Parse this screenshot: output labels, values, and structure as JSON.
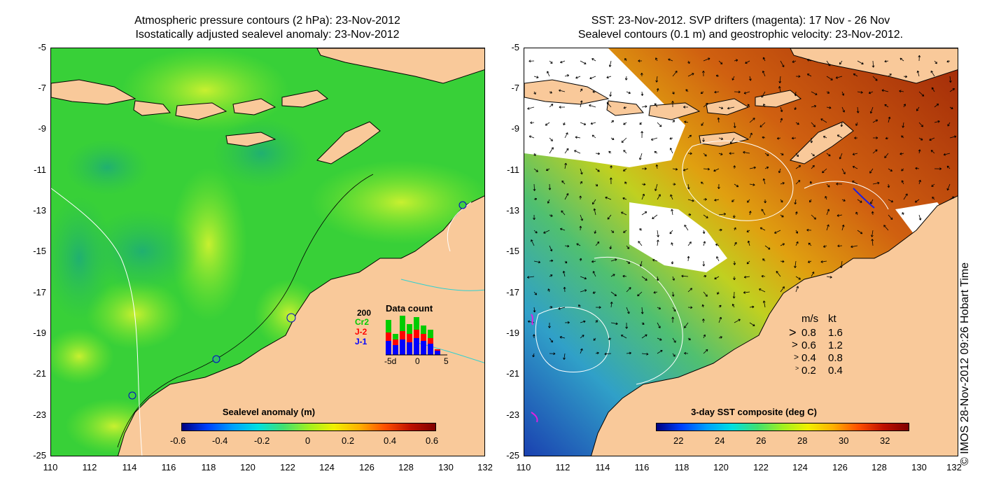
{
  "left_panel": {
    "title_line1": "Atmospheric pressure contours (2 hPa): 23-Nov-2012",
    "title_line2": "Isostatically adjusted sealevel anomaly: 23-Nov-2012",
    "colorbar": {
      "label": "Sealevel anomaly (m)",
      "ticks": [
        "-0.6",
        "-0.4",
        "-0.2",
        "0",
        "0.2",
        "0.4",
        "0.6"
      ]
    },
    "data_count_inset": {
      "title": "Data count",
      "y_max_label": "200",
      "series": [
        {
          "name": "Cr2",
          "color": "#00cc00"
        },
        {
          "name": "J-2",
          "color": "#ff0000"
        },
        {
          "name": "J-1",
          "color": "#0000ff"
        }
      ],
      "x_ticks": [
        "-5d",
        "0",
        "5"
      ]
    }
  },
  "right_panel": {
    "title_line1": "SST: 23-Nov-2012. SVP drifters (magenta): 17 Nov - 26 Nov",
    "title_line2": "Sealevel contours (0.1 m) and geostrophic velocity: 23-Nov-2012.",
    "colorbar": {
      "label": "3-day SST composite (deg C)",
      "ticks": [
        "22",
        "24",
        "26",
        "28",
        "30",
        "32"
      ]
    },
    "velocity_legend": {
      "header_ms": "m/s",
      "header_kt": "kt",
      "rows": [
        {
          "ms": "0.8",
          "kt": "1.6"
        },
        {
          "ms": "0.6",
          "kt": "1.2"
        },
        {
          "ms": "0.4",
          "kt": "0.8"
        },
        {
          "ms": "0.2",
          "kt": "0.4"
        }
      ]
    }
  },
  "axes": {
    "y_ticks": [
      "-5",
      "-7",
      "-9",
      "-11",
      "-13",
      "-15",
      "-17",
      "-19",
      "-21",
      "-23",
      "-25"
    ],
    "x_ticks": [
      "110",
      "112",
      "114",
      "116",
      "118",
      "120",
      "122",
      "124",
      "126",
      "128",
      "130",
      "132"
    ]
  },
  "credit": "© IMOS 28-Nov-2012 09:26 Hobart Time",
  "colors": {
    "land": "#f9c99a",
    "sea_green": "#3fd23f",
    "sst_warm": "#c04010",
    "sst_cool": "#20a0d0"
  }
}
